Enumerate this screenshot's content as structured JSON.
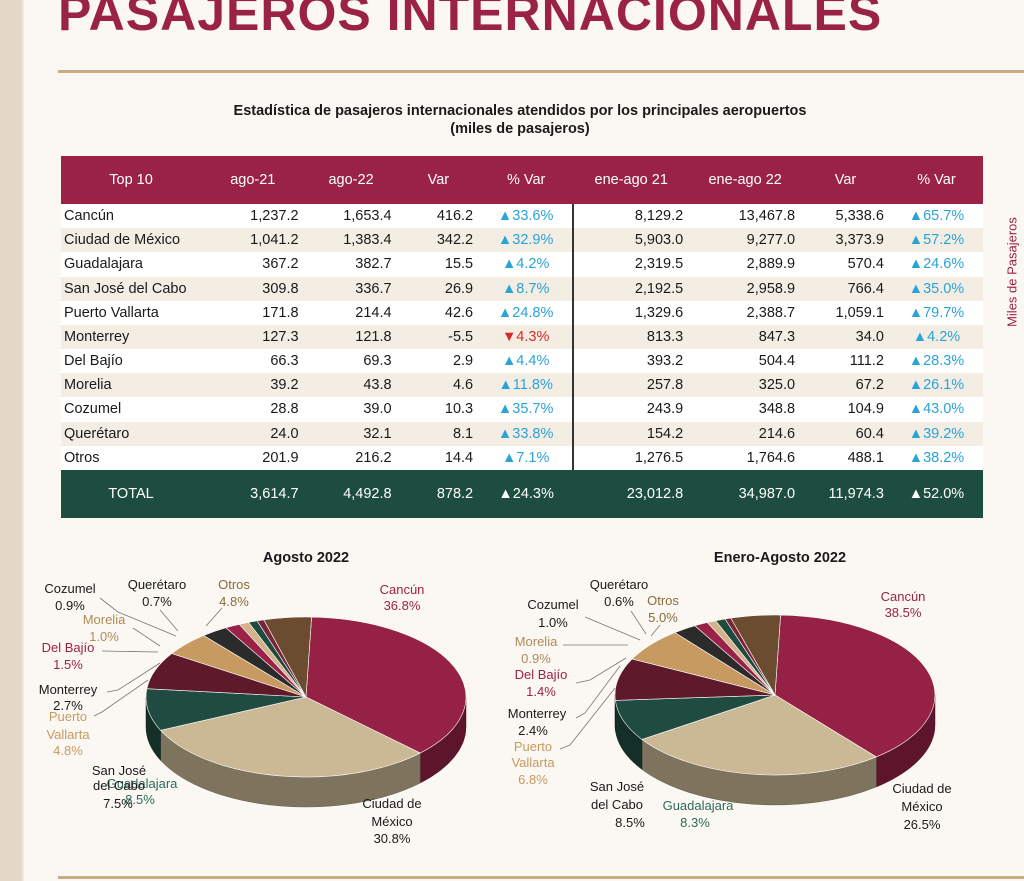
{
  "page": {
    "title": "PASAJEROS INTERNACIONALES",
    "subtitle_line1": "Estadística de pasajeros internacionales atendidos por los principales aeropuertos",
    "subtitle_line2": "(miles de pasajeros)",
    "side_label": "Miles de Pasajeros"
  },
  "table": {
    "headers": [
      "Top 10",
      "ago-21",
      "ago-22",
      "Var",
      "% Var",
      "ene-ago 21",
      "ene-ago 22",
      "Var",
      "% Var"
    ],
    "rows": [
      {
        "name": "Cancún",
        "ago21": "1,237.2",
        "ago22": "1,653.4",
        "var": "416.2",
        "pct": "▲33.6%",
        "neg": false,
        "ene21": "8,129.2",
        "ene22": "13,467.8",
        "var2": "5,338.6",
        "pct2": "▲65.7%",
        "neg2": false
      },
      {
        "name": "Ciudad de México",
        "ago21": "1,041.2",
        "ago22": "1,383.4",
        "var": "342.2",
        "pct": "▲32.9%",
        "neg": false,
        "ene21": "5,903.0",
        "ene22": "9,277.0",
        "var2": "3,373.9",
        "pct2": "▲57.2%",
        "neg2": false
      },
      {
        "name": "Guadalajara",
        "ago21": "367.2",
        "ago22": "382.7",
        "var": "15.5",
        "pct": "▲4.2%",
        "neg": false,
        "ene21": "2,319.5",
        "ene22": "2,889.9",
        "var2": "570.4",
        "pct2": "▲24.6%",
        "neg2": false
      },
      {
        "name": "San José del Cabo",
        "ago21": "309.8",
        "ago22": "336.7",
        "var": "26.9",
        "pct": "▲8.7%",
        "neg": false,
        "ene21": "2,192.5",
        "ene22": "2,958.9",
        "var2": "766.4",
        "pct2": "▲35.0%",
        "neg2": false
      },
      {
        "name": "Puerto Vallarta",
        "ago21": "171.8",
        "ago22": "214.4",
        "var": "42.6",
        "pct": "▲24.8%",
        "neg": false,
        "ene21": "1,329.6",
        "ene22": "2,388.7",
        "var2": "1,059.1",
        "pct2": "▲79.7%",
        "neg2": false
      },
      {
        "name": "Monterrey",
        "ago21": "127.3",
        "ago22": "121.8",
        "var": "-5.5",
        "pct": "▼4.3%",
        "neg": true,
        "ene21": "813.3",
        "ene22": "847.3",
        "var2": "34.0",
        "pct2": "▲4.2%",
        "neg2": false
      },
      {
        "name": "Del Bajío",
        "ago21": "66.3",
        "ago22": "69.3",
        "var": "2.9",
        "pct": "▲4.4%",
        "neg": false,
        "ene21": "393.2",
        "ene22": "504.4",
        "var2": "111.2",
        "pct2": "▲28.3%",
        "neg2": false
      },
      {
        "name": "Morelia",
        "ago21": "39.2",
        "ago22": "43.8",
        "var": "4.6",
        "pct": "▲11.8%",
        "neg": false,
        "ene21": "257.8",
        "ene22": "325.0",
        "var2": "67.2",
        "pct2": "▲26.1%",
        "neg2": false
      },
      {
        "name": "Cozumel",
        "ago21": "28.8",
        "ago22": "39.0",
        "var": "10.3",
        "pct": "▲35.7%",
        "neg": false,
        "ene21": "243.9",
        "ene22": "348.8",
        "var2": "104.9",
        "pct2": "▲43.0%",
        "neg2": false
      },
      {
        "name": "Querétaro",
        "ago21": "24.0",
        "ago22": "32.1",
        "var": "8.1",
        "pct": "▲33.8%",
        "neg": false,
        "ene21": "154.2",
        "ene22": "214.6",
        "var2": "60.4",
        "pct2": "▲39.2%",
        "neg2": false
      },
      {
        "name": "Otros",
        "ago21": "201.9",
        "ago22": "216.2",
        "var": "14.4",
        "pct": "▲7.1%",
        "neg": false,
        "ene21": "1,276.5",
        "ene22": "1,764.6",
        "var2": "488.1",
        "pct2": "▲38.2%",
        "neg2": false
      }
    ],
    "total": {
      "name": "TOTAL",
      "ago21": "3,614.7",
      "ago22": "4,492.8",
      "var": "878.2",
      "pct": "▲24.3%",
      "ene21": "23,012.8",
      "ene22": "34,987.0",
      "var2": "11,974.3",
      "pct2": "▲52.0%"
    }
  },
  "colors": {
    "header_bg": "#9b2247",
    "total_bg": "#1d4d3f",
    "positive": "#2aa3d6",
    "negative": "#d62a2a",
    "title": "#9b2247"
  },
  "chart_data": [
    {
      "type": "pie",
      "title": "Agosto 2022",
      "slices": [
        {
          "label": "Cancún",
          "value": 36.8,
          "pct": "36.8%",
          "color": "#952245",
          "text_color": "#9b2247"
        },
        {
          "label": "Ciudad de México",
          "value": 30.8,
          "pct": "30.8%",
          "color": "#cbb996",
          "text_color": "#1a1a1a"
        },
        {
          "label": "Guadalajara",
          "value": 8.5,
          "pct": "8.5%",
          "color": "#204b40",
          "text_color": "#2c6a5a"
        },
        {
          "label": "San José del Cabo",
          "value": 7.5,
          "pct": "7.5%",
          "color": "#5e1a2a",
          "text_color": "#1a1a1a"
        },
        {
          "label": "Puerto Vallarta",
          "value": 4.8,
          "pct": "4.8%",
          "color": "#c79a62",
          "text_color": "#c79a62"
        },
        {
          "label": "Monterrey",
          "value": 2.7,
          "pct": "2.7%",
          "color": "#2b2b2b",
          "text_color": "#1a1a1a"
        },
        {
          "label": "Del Bajío",
          "value": 1.5,
          "pct": "1.5%",
          "color": "#9b2247",
          "text_color": "#9b2247"
        },
        {
          "label": "Morelia",
          "value": 1.0,
          "pct": "1.0%",
          "color": "#d3b38a",
          "text_color": "#b08a5a"
        },
        {
          "label": "Cozumel",
          "value": 0.9,
          "pct": "0.9%",
          "color": "#1f4a3e",
          "text_color": "#1a1a1a"
        },
        {
          "label": "Querétaro",
          "value": 0.7,
          "pct": "0.7%",
          "color": "#7a2438",
          "text_color": "#1a1a1a"
        },
        {
          "label": "Otros",
          "value": 4.8,
          "pct": "4.8%",
          "color": "#6b4c30",
          "text_color": "#8a6a3a"
        }
      ]
    },
    {
      "type": "pie",
      "title": "Enero-Agosto 2022",
      "slices": [
        {
          "label": "Cancún",
          "value": 38.5,
          "pct": "38.5%",
          "color": "#952245",
          "text_color": "#9b2247"
        },
        {
          "label": "Ciudad de México",
          "value": 26.5,
          "pct": "26.5%",
          "color": "#cbb996",
          "text_color": "#1a1a1a"
        },
        {
          "label": "Guadalajara",
          "value": 8.3,
          "pct": "8.3%",
          "color": "#204b40",
          "text_color": "#2c6a5a"
        },
        {
          "label": "San José del Cabo",
          "value": 8.5,
          "pct": "8.5%",
          "color": "#5e1a2a",
          "text_color": "#1a1a1a"
        },
        {
          "label": "Puerto Vallarta",
          "value": 6.8,
          "pct": "6.8%",
          "color": "#c79a62",
          "text_color": "#c79a62"
        },
        {
          "label": "Monterrey",
          "value": 2.4,
          "pct": "2.4%",
          "color": "#2b2b2b",
          "text_color": "#1a1a1a"
        },
        {
          "label": "Del Bajío",
          "value": 1.4,
          "pct": "1.4%",
          "color": "#9b2247",
          "text_color": "#9b2247"
        },
        {
          "label": "Morelia",
          "value": 0.9,
          "pct": "0.9%",
          "color": "#d3b38a",
          "text_color": "#b08a5a"
        },
        {
          "label": "Cozumel",
          "value": 1.0,
          "pct": "1.0%",
          "color": "#1f4a3e",
          "text_color": "#1a1a1a"
        },
        {
          "label": "Querétaro",
          "value": 0.6,
          "pct": "0.6%",
          "color": "#7a2438",
          "text_color": "#1a1a1a"
        },
        {
          "label": "Otros",
          "value": 5.0,
          "pct": "5.0%",
          "color": "#6b4c30",
          "text_color": "#8a6a3a"
        }
      ]
    }
  ]
}
